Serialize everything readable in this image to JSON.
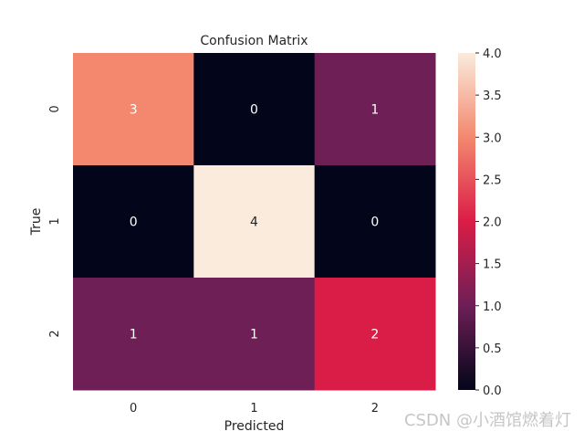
{
  "chart_data": {
    "type": "heatmap",
    "title": "Confusion Matrix",
    "xlabel": "Predicted",
    "ylabel": "True",
    "x_categories": [
      "0",
      "1",
      "2"
    ],
    "y_categories": [
      "0",
      "1",
      "2"
    ],
    "values": [
      [
        3,
        0,
        1
      ],
      [
        0,
        4,
        0
      ],
      [
        1,
        1,
        2
      ]
    ],
    "annotations": true,
    "colormap": "rocket",
    "colorbar": {
      "range": [
        0.0,
        4.0
      ],
      "ticks": [
        "0.0",
        "0.5",
        "1.0",
        "1.5",
        "2.0",
        "2.5",
        "3.0",
        "3.5",
        "4.0"
      ],
      "colors": [
        "#03051a",
        "#6d1f56",
        "#da1d47",
        "#f3886e",
        "#faebdd"
      ]
    }
  },
  "watermark": "CSDN @小酒馆燃着灯"
}
